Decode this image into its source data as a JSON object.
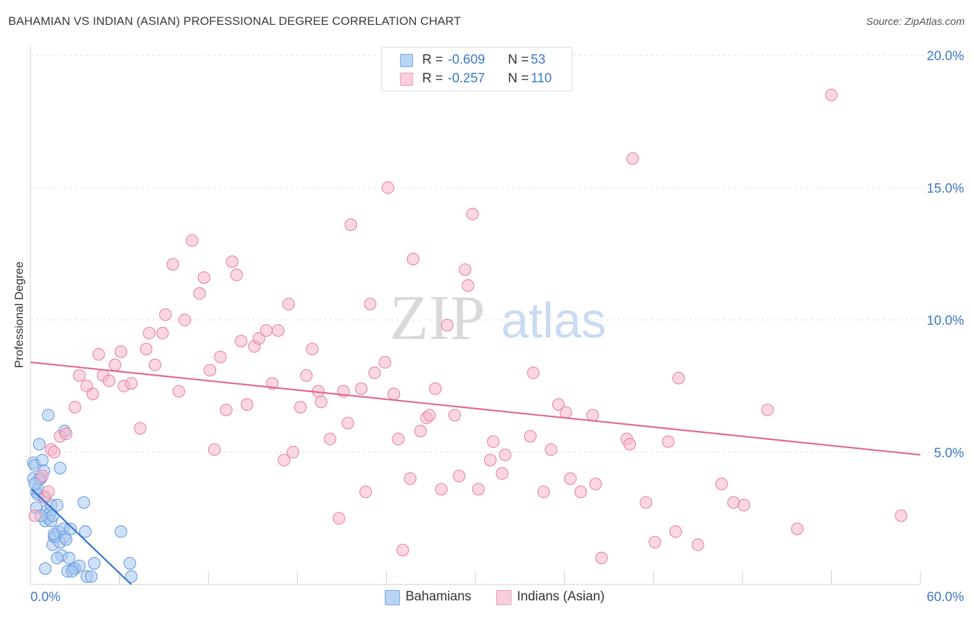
{
  "header": {
    "title": "BAHAMIAN VS INDIAN (ASIAN) PROFESSIONAL DEGREE CORRELATION CHART",
    "source": "Source: ZipAtlas.com"
  },
  "legend": {
    "rows": [
      {
        "r_label": "R =",
        "r_value": "-0.609",
        "n_label": "N =",
        "n_value": "53",
        "color": "#a9c8f0"
      },
      {
        "r_label": "R =",
        "r_value": "-0.257",
        "n_label": "N =",
        "n_value": "110",
        "color": "#f5b7cb"
      }
    ]
  },
  "bottom_legend": {
    "items": [
      {
        "label": "Bahamians",
        "color": "#a9c8f0"
      },
      {
        "label": "Indians (Asian)",
        "color": "#f5b7cb"
      }
    ]
  },
  "watermark": {
    "zip": "ZIP",
    "atlas": "atlas"
  },
  "chart_data": {
    "type": "scatter",
    "title": "BAHAMIAN VS INDIAN (ASIAN) PROFESSIONAL DEGREE CORRELATION CHART",
    "xlabel": "",
    "ylabel": "Professional Degree",
    "xlim": [
      0,
      60
    ],
    "ylim": [
      0,
      20
    ],
    "x_tick_labels": [
      "0.0%",
      "60.0%"
    ],
    "y_tick_labels": [
      "5.0%",
      "10.0%",
      "15.0%",
      "20.0%"
    ],
    "y_ticks": [
      5,
      10,
      15,
      20
    ],
    "grid": "horizontal dashed",
    "legend_position": "top-center",
    "series": [
      {
        "name": "Bahamians",
        "color": "#6fa0e0",
        "fill": "#a9c8f0",
        "trend": {
          "x": [
            0.1,
            6.8
          ],
          "y": [
            3.6,
            0.0
          ],
          "color": "#2f74d0"
        },
        "points": [
          [
            0.2,
            4.6
          ],
          [
            0.3,
            4.5
          ],
          [
            0.2,
            4.0
          ],
          [
            0.4,
            3.5
          ],
          [
            0.5,
            3.4
          ],
          [
            0.6,
            5.3
          ],
          [
            0.7,
            4.0
          ],
          [
            0.8,
            4.7
          ],
          [
            0.9,
            3.3
          ],
          [
            1.0,
            2.4
          ],
          [
            1.1,
            2.8
          ],
          [
            1.2,
            2.5
          ],
          [
            1.3,
            2.7
          ],
          [
            1.4,
            3.0
          ],
          [
            1.5,
            1.5
          ],
          [
            1.6,
            1.8
          ],
          [
            1.7,
            1.8
          ],
          [
            1.8,
            3.0
          ],
          [
            1.9,
            2.0
          ],
          [
            2.0,
            1.6
          ],
          [
            2.1,
            1.1
          ],
          [
            2.2,
            2.1
          ],
          [
            2.3,
            1.8
          ],
          [
            2.4,
            1.7
          ],
          [
            2.5,
            0.5
          ],
          [
            2.6,
            1.0
          ],
          [
            2.7,
            2.1
          ],
          [
            2.9,
            0.6
          ],
          [
            3.0,
            0.6
          ],
          [
            3.3,
            0.7
          ],
          [
            3.6,
            3.1
          ],
          [
            3.7,
            2.0
          ],
          [
            3.8,
            0.3
          ],
          [
            4.1,
            0.3
          ],
          [
            4.3,
            0.8
          ],
          [
            0.5,
            3.6
          ],
          [
            0.6,
            4.0
          ],
          [
            0.9,
            4.3
          ],
          [
            1.2,
            6.4
          ],
          [
            1.4,
            2.4
          ],
          [
            1.6,
            1.9
          ],
          [
            2.0,
            4.4
          ],
          [
            2.3,
            5.8
          ],
          [
            0.3,
            3.8
          ],
          [
            0.4,
            2.9
          ],
          [
            0.7,
            2.6
          ],
          [
            1.0,
            0.6
          ],
          [
            1.8,
            1.0
          ],
          [
            2.8,
            0.5
          ],
          [
            6.1,
            2.0
          ],
          [
            6.7,
            0.8
          ],
          [
            6.8,
            0.3
          ],
          [
            1.5,
            2.6
          ]
        ]
      },
      {
        "name": "Indians (Asian)",
        "color": "#e88aa8",
        "fill": "#f5b7cb",
        "trend": {
          "x": [
            0,
            60
          ],
          "y": [
            8.4,
            4.9
          ],
          "color": "#e0658f"
        },
        "points": [
          [
            0.3,
            2.6
          ],
          [
            0.8,
            4.1
          ],
          [
            1.0,
            3.3
          ],
          [
            1.2,
            3.5
          ],
          [
            1.4,
            5.1
          ],
          [
            1.6,
            5.0
          ],
          [
            2.0,
            5.6
          ],
          [
            2.4,
            5.7
          ],
          [
            3.0,
            6.7
          ],
          [
            3.3,
            7.9
          ],
          [
            3.8,
            7.5
          ],
          [
            4.2,
            7.2
          ],
          [
            4.6,
            8.7
          ],
          [
            4.9,
            7.9
          ],
          [
            5.3,
            7.7
          ],
          [
            5.7,
            8.3
          ],
          [
            6.1,
            8.8
          ],
          [
            6.3,
            7.5
          ],
          [
            6.8,
            7.6
          ],
          [
            7.4,
            5.9
          ],
          [
            7.8,
            8.9
          ],
          [
            8.0,
            9.5
          ],
          [
            8.4,
            8.3
          ],
          [
            8.9,
            9.5
          ],
          [
            9.1,
            10.2
          ],
          [
            9.6,
            12.1
          ],
          [
            10.0,
            7.3
          ],
          [
            10.4,
            10.0
          ],
          [
            10.9,
            13.0
          ],
          [
            11.4,
            11.0
          ],
          [
            11.7,
            11.6
          ],
          [
            12.1,
            8.1
          ],
          [
            12.4,
            5.1
          ],
          [
            12.8,
            8.6
          ],
          [
            13.2,
            6.6
          ],
          [
            13.6,
            12.2
          ],
          [
            13.9,
            11.7
          ],
          [
            14.2,
            9.2
          ],
          [
            14.6,
            6.8
          ],
          [
            15.1,
            9.0
          ],
          [
            15.4,
            9.3
          ],
          [
            15.9,
            9.6
          ],
          [
            16.3,
            7.6
          ],
          [
            16.7,
            9.6
          ],
          [
            17.1,
            4.7
          ],
          [
            17.4,
            10.6
          ],
          [
            17.7,
            5.0
          ],
          [
            18.2,
            6.7
          ],
          [
            18.6,
            7.9
          ],
          [
            19.0,
            8.9
          ],
          [
            19.4,
            7.3
          ],
          [
            19.6,
            6.9
          ],
          [
            20.2,
            5.5
          ],
          [
            20.8,
            2.5
          ],
          [
            21.1,
            7.3
          ],
          [
            21.4,
            6.1
          ],
          [
            21.6,
            13.6
          ],
          [
            22.3,
            7.4
          ],
          [
            22.6,
            3.5
          ],
          [
            22.9,
            10.6
          ],
          [
            23.2,
            8.0
          ],
          [
            23.9,
            8.4
          ],
          [
            24.1,
            15.0
          ],
          [
            24.5,
            7.2
          ],
          [
            24.8,
            5.5
          ],
          [
            25.1,
            1.3
          ],
          [
            25.6,
            4.0
          ],
          [
            25.8,
            12.3
          ],
          [
            26.3,
            5.8
          ],
          [
            26.7,
            6.3
          ],
          [
            26.9,
            6.4
          ],
          [
            27.3,
            7.4
          ],
          [
            27.7,
            3.6
          ],
          [
            28.1,
            9.8
          ],
          [
            28.6,
            6.4
          ],
          [
            28.9,
            4.1
          ],
          [
            29.3,
            11.9
          ],
          [
            29.5,
            11.3
          ],
          [
            29.8,
            14.0
          ],
          [
            30.2,
            3.6
          ],
          [
            31.0,
            4.7
          ],
          [
            31.2,
            5.4
          ],
          [
            31.8,
            4.2
          ],
          [
            32.0,
            4.9
          ],
          [
            33.7,
            5.6
          ],
          [
            33.9,
            8.0
          ],
          [
            34.6,
            3.5
          ],
          [
            35.1,
            5.1
          ],
          [
            35.6,
            6.8
          ],
          [
            36.1,
            6.5
          ],
          [
            36.4,
            4.0
          ],
          [
            37.1,
            3.5
          ],
          [
            37.9,
            6.4
          ],
          [
            38.1,
            3.8
          ],
          [
            38.5,
            1.0
          ],
          [
            40.2,
            5.5
          ],
          [
            40.4,
            5.3
          ],
          [
            40.6,
            16.1
          ],
          [
            41.5,
            3.1
          ],
          [
            42.1,
            1.6
          ],
          [
            43.0,
            5.4
          ],
          [
            43.5,
            2.0
          ],
          [
            43.7,
            7.8
          ],
          [
            45.0,
            1.5
          ],
          [
            46.6,
            3.8
          ],
          [
            47.4,
            3.1
          ],
          [
            48.1,
            3.0
          ],
          [
            49.7,
            6.6
          ],
          [
            51.7,
            2.1
          ],
          [
            54.0,
            18.5
          ],
          [
            58.7,
            2.6
          ]
        ]
      }
    ]
  }
}
